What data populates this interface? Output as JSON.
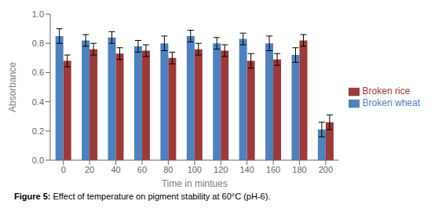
{
  "chart_data": {
    "type": "bar",
    "categories": [
      0,
      20,
      40,
      60,
      80,
      100,
      120,
      140,
      160,
      180,
      200
    ],
    "series": [
      {
        "name": "Broken wheat",
        "color": "#4F81BD",
        "values": [
          0.85,
          0.82,
          0.84,
          0.78,
          0.8,
          0.85,
          0.8,
          0.83,
          0.8,
          0.72,
          0.21
        ],
        "errors": [
          0.05,
          0.04,
          0.04,
          0.04,
          0.05,
          0.04,
          0.04,
          0.04,
          0.05,
          0.05,
          0.05
        ]
      },
      {
        "name": "Broken rice",
        "color": "#9B3A3A",
        "values": [
          0.68,
          0.76,
          0.73,
          0.75,
          0.7,
          0.76,
          0.75,
          0.68,
          0.69,
          0.82,
          0.26
        ],
        "errors": [
          0.04,
          0.04,
          0.04,
          0.04,
          0.04,
          0.04,
          0.04,
          0.05,
          0.04,
          0.04,
          0.05
        ]
      }
    ],
    "x_label": "Time in mintues",
    "y_label": "Absorbance",
    "ylim": [
      0,
      1.0
    ],
    "yticks": [
      {
        "value": 0,
        "label": "0.0"
      },
      0.2,
      0.4,
      0.6,
      0.8,
      {
        "value": 1.0,
        "label": "1.0"
      }
    ],
    "grid": false,
    "legend": "right",
    "annotations": [
      "Figure 5:",
      "Effect of temperature on pigment stability at 60°C (pH-6)."
    ]
  }
}
